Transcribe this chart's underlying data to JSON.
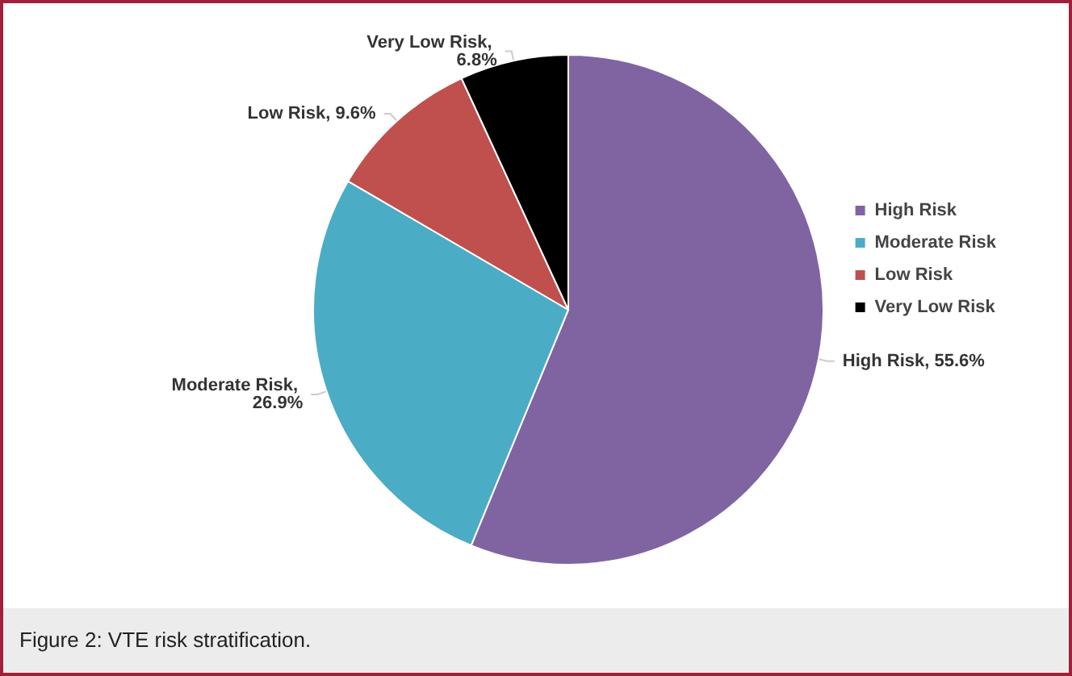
{
  "chart_data": {
    "type": "pie",
    "categories": [
      "High Risk",
      "Moderate Risk",
      "Low Risk",
      "Very Low Risk"
    ],
    "values": [
      55.6,
      26.9,
      9.6,
      6.8
    ],
    "value_labels": [
      "High Risk, 55.6%",
      "Moderate Risk, 26.9%",
      "Low Risk, 9.6%",
      "Very Low Risk, 6.8%"
    ],
    "colors": [
      "#8064a2",
      "#4bacc6",
      "#c0504d",
      "#000000"
    ],
    "legend": "right",
    "annotations": [
      "Figure 2: VTE risk stratification."
    ]
  }
}
